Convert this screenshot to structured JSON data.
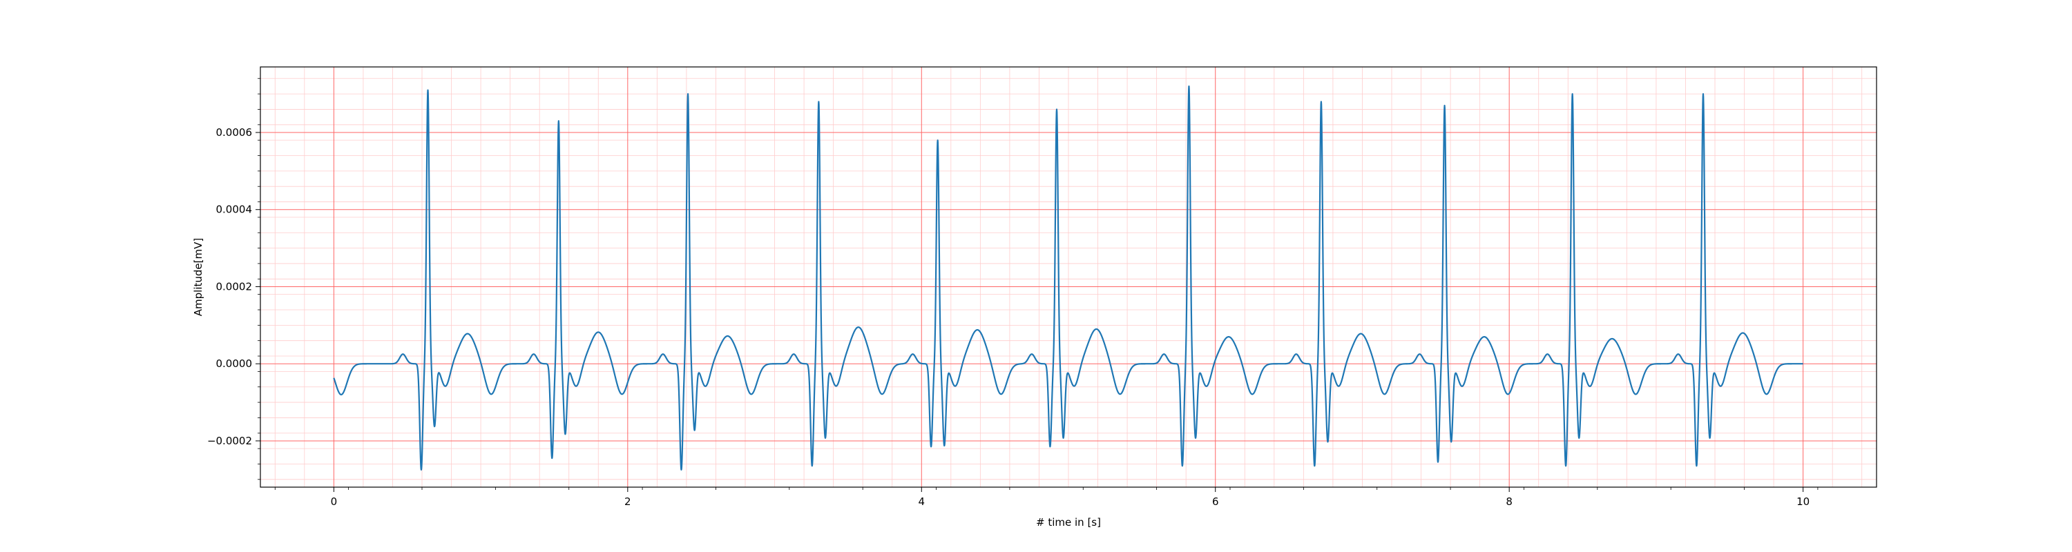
{
  "chart_data": {
    "type": "line",
    "title": "",
    "xlabel": "# time in [s]",
    "ylabel": "Amplitude[mV]",
    "xlim": [
      -0.5,
      10.5
    ],
    "ylim": [
      -0.00032,
      0.00077
    ],
    "x_ticks": [
      0,
      2,
      4,
      6,
      8,
      10
    ],
    "x_tick_labels": [
      "0",
      "2",
      "4",
      "6",
      "8",
      "10"
    ],
    "y_ticks": [
      -0.0002,
      0.0,
      0.0002,
      0.0004,
      0.0006
    ],
    "y_tick_labels": [
      "−0.0002",
      "0.0000",
      "0.0002",
      "0.0004",
      "0.0006"
    ],
    "grid": "on (major and minor)",
    "colors": {
      "line": "#1f77b4",
      "major_grid": "#ff6666",
      "minor_grid": "#ffcccc"
    },
    "series": [
      {
        "beats": [
          {
            "r_time": 0.64,
            "r_amp": 0.00071,
            "q_amp": -0.00027,
            "s_amp": -0.00016,
            "t_amp": 7.8e-05
          },
          {
            "r_time": 1.53,
            "r_amp": 0.00063,
            "q_amp": -0.00024,
            "s_amp": -0.00018,
            "t_amp": 8.2e-05
          },
          {
            "r_time": 2.41,
            "r_amp": 0.0007,
            "q_amp": -0.00027,
            "s_amp": -0.00017,
            "t_amp": 7.2e-05
          },
          {
            "r_time": 3.3,
            "r_amp": 0.00068,
            "q_amp": -0.00026,
            "s_amp": -0.00019,
            "t_amp": 9.5e-05
          },
          {
            "r_time": 4.11,
            "r_amp": 0.00058,
            "q_amp": -0.00021,
            "s_amp": -0.00021,
            "t_amp": 8.8e-05
          },
          {
            "r_time": 4.92,
            "r_amp": 0.00066,
            "q_amp": -0.00021,
            "s_amp": -0.00019,
            "t_amp": 9e-05
          },
          {
            "r_time": 5.82,
            "r_amp": 0.00072,
            "q_amp": -0.00026,
            "s_amp": -0.00019,
            "t_amp": 7e-05
          },
          {
            "r_time": 6.72,
            "r_amp": 0.00068,
            "q_amp": -0.00026,
            "s_amp": -0.0002,
            "t_amp": 7.8e-05
          },
          {
            "r_time": 7.56,
            "r_amp": 0.00067,
            "q_amp": -0.00025,
            "s_amp": -0.0002,
            "t_amp": 7e-05
          },
          {
            "r_time": 8.43,
            "r_amp": 0.0007,
            "q_amp": -0.00026,
            "s_amp": -0.00019,
            "t_amp": 6.5e-05
          },
          {
            "r_time": 9.32,
            "r_amp": 0.0007,
            "q_amp": -0.00026,
            "s_amp": -0.00019,
            "t_amp": 8e-05
          }
        ]
      }
    ]
  }
}
